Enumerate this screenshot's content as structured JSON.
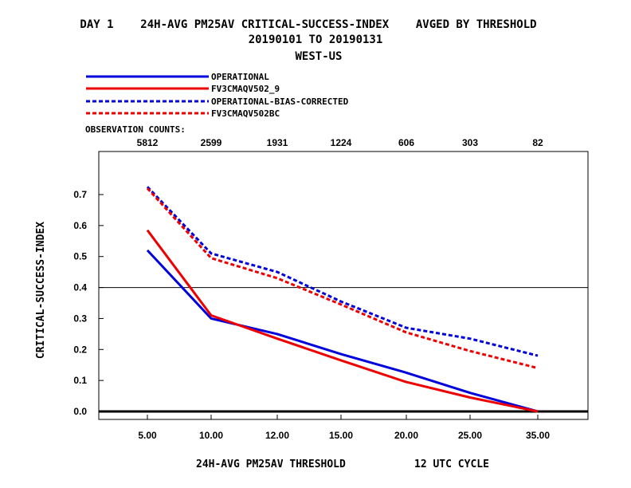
{
  "header": {
    "line1": "DAY 1    24H-AVG PM25AV CRITICAL-SUCCESS-INDEX    AVGED BY THRESHOLD",
    "line2": "20190101 TO 20190131",
    "line3": "WEST-US"
  },
  "observation_counts_label": "OBSERVATION COUNTS:",
  "observation_counts": [
    "5812",
    "2599",
    "1931",
    "1224",
    "606",
    "303",
    "82"
  ],
  "footer": {
    "xlabel": "24H-AVG PM25AV THRESHOLD",
    "cycle": "12 UTC CYCLE"
  },
  "chart_data": {
    "type": "line",
    "title": "DAY 1    24H-AVG PM25AV CRITICAL-SUCCESS-INDEX    AVGED BY THRESHOLD",
    "subtitle": "20190101 TO 20190131 WEST-US",
    "xlabel": "24H-AVG PM25AV THRESHOLD",
    "ylabel": "CRITICAL-SUCCESS-INDEX",
    "categories": [
      "5.00",
      "10.00",
      "12.00",
      "15.00",
      "20.00",
      "25.00",
      "35.00"
    ],
    "ylim": [
      -0.02,
      0.84
    ],
    "yticks": [
      0.0,
      0.1,
      0.2,
      0.3,
      0.4,
      0.5,
      0.6,
      0.7
    ],
    "ytick_labels": [
      "0.0",
      "0.1",
      "0.2",
      "0.3",
      "0.4",
      "0.5",
      "0.6",
      "0.7"
    ],
    "reference_lines": [
      0.0,
      0.4
    ],
    "grid": false,
    "legend_position": "top-left, above plot",
    "series": [
      {
        "name": "OPERATIONAL",
        "color": "#0000dd",
        "dashed": false,
        "values": [
          0.52,
          0.3,
          0.25,
          0.185,
          0.125,
          0.06,
          0.0
        ]
      },
      {
        "name": "FV3CMAQV502_9",
        "color": "#ee0000",
        "dashed": false,
        "values": [
          0.585,
          0.31,
          0.235,
          0.165,
          0.095,
          0.045,
          0.0
        ]
      },
      {
        "name": "OPERATIONAL-BIAS-CORRECTED",
        "color": "#0000dd",
        "dashed": true,
        "values": [
          0.725,
          0.51,
          0.45,
          0.355,
          0.27,
          0.235,
          0.18
        ]
      },
      {
        "name": "FV3CMAQV502BC",
        "color": "#ee0000",
        "dashed": true,
        "values": [
          0.72,
          0.495,
          0.43,
          0.345,
          0.255,
          0.195,
          0.14
        ]
      }
    ]
  }
}
